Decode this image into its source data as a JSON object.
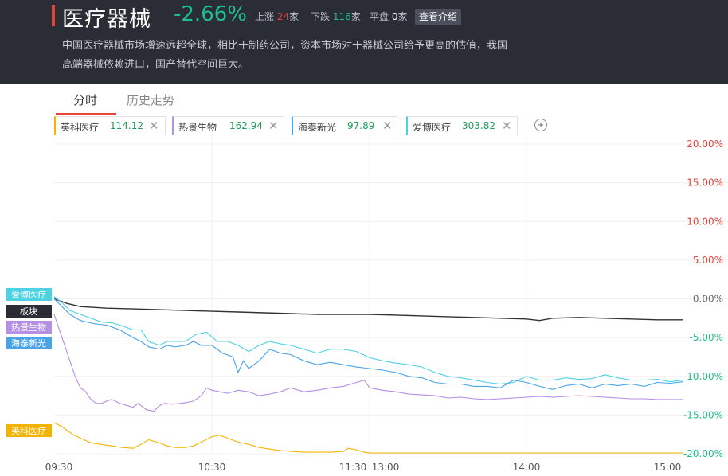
{
  "header": {
    "title": "医疗器械",
    "change": "-2.66%",
    "up_label": "上涨",
    "up_count": "24",
    "down_label": "下跌",
    "down_count": "116",
    "flat_label": "平盘",
    "flat_count": "0",
    "unit": "家",
    "intro_button": "查看介绍",
    "description_line1": "中国医疗器械市场增速远超全球，相比于制药公司，资本市场对于器械公司给予更高的估值，我国",
    "description_line2": "高端器械依赖进口，国产替代空间巨大。"
  },
  "tabs": [
    {
      "label": "分时"
    },
    {
      "label": "历史走势"
    }
  ],
  "chips": [
    {
      "name": "英科医疗",
      "value": "114.12",
      "close": "✕"
    },
    {
      "name": "热景生物",
      "value": "162.94",
      "close": "✕"
    },
    {
      "name": "海泰新光",
      "value": "97.89",
      "close": "✕"
    },
    {
      "name": "爱博医疗",
      "value": "303.82",
      "close": "✕"
    }
  ],
  "add_icon": "+",
  "colors": {
    "header_bg": "#2a2c36",
    "up": "#e8413a",
    "down": "#1dbf8a",
    "sector": "#333333",
    "yingke": "#f5b301",
    "rejing": "#b58ee6",
    "haitai": "#4aa3e6",
    "aibo": "#4fd1e4"
  },
  "chart_data": {
    "type": "line",
    "x_ticks": [
      "09:30",
      "10:30",
      "11:30",
      "13:00",
      "14:00",
      "15:00"
    ],
    "y_ticks": [
      "20.00%",
      "15.00%",
      "10.00%",
      "5.00%",
      "0.00%",
      "-5.00%",
      "-10.00%",
      "-15.00%",
      "-20.00%"
    ],
    "ylim": [
      -20,
      20
    ],
    "grid": true,
    "session_minutes": 240,
    "series": [
      {
        "name": "板块",
        "label": "板块",
        "color": "#333333",
        "points": [
          [
            0,
            0
          ],
          [
            5,
            -0.6
          ],
          [
            10,
            -1
          ],
          [
            20,
            -1.2
          ],
          [
            30,
            -1.3
          ],
          [
            40,
            -1.4
          ],
          [
            50,
            -1.5
          ],
          [
            60,
            -1.6
          ],
          [
            70,
            -1.7
          ],
          [
            80,
            -1.8
          ],
          [
            90,
            -1.9
          ],
          [
            100,
            -2
          ],
          [
            110,
            -2
          ],
          [
            120,
            -2
          ],
          [
            130,
            -2.1
          ],
          [
            140,
            -2.2
          ],
          [
            150,
            -2.3
          ],
          [
            160,
            -2.4
          ],
          [
            170,
            -2.5
          ],
          [
            180,
            -2.6
          ],
          [
            185,
            -2.8
          ],
          [
            190,
            -2.5
          ],
          [
            200,
            -2.4
          ],
          [
            210,
            -2.5
          ],
          [
            220,
            -2.6
          ],
          [
            230,
            -2.7
          ],
          [
            240,
            -2.7
          ]
        ]
      },
      {
        "name": "爱博医疗",
        "label": "爱博医疗",
        "color": "#4fd1e4",
        "points": [
          [
            0,
            0.3
          ],
          [
            3,
            -0.5
          ],
          [
            6,
            -1.5
          ],
          [
            10,
            -2
          ],
          [
            14,
            -2.5
          ],
          [
            18,
            -3
          ],
          [
            22,
            -3.1
          ],
          [
            26,
            -3.5
          ],
          [
            30,
            -4
          ],
          [
            33,
            -4
          ],
          [
            36,
            -5.5
          ],
          [
            40,
            -6
          ],
          [
            43,
            -5.5
          ],
          [
            46,
            -5.5
          ],
          [
            50,
            -5.5
          ],
          [
            54,
            -4.6
          ],
          [
            58,
            -4.3
          ],
          [
            62,
            -5.5
          ],
          [
            66,
            -5.5
          ],
          [
            70,
            -6
          ],
          [
            74,
            -6.8
          ],
          [
            78,
            -6
          ],
          [
            82,
            -5.5
          ],
          [
            86,
            -5.8
          ],
          [
            90,
            -6
          ],
          [
            95,
            -6.5
          ],
          [
            100,
            -7
          ],
          [
            105,
            -6.5
          ],
          [
            110,
            -6.5
          ],
          [
            115,
            -6.8
          ],
          [
            120,
            -7.6
          ],
          [
            125,
            -8
          ],
          [
            130,
            -8.3
          ],
          [
            135,
            -8.5
          ],
          [
            140,
            -8.8
          ],
          [
            145,
            -9.5
          ],
          [
            150,
            -10
          ],
          [
            155,
            -10.2
          ],
          [
            160,
            -10.5
          ],
          [
            165,
            -10.8
          ],
          [
            170,
            -11
          ],
          [
            175,
            -10.8
          ],
          [
            180,
            -10
          ],
          [
            185,
            -10.5
          ],
          [
            190,
            -10.5
          ],
          [
            195,
            -10.2
          ],
          [
            200,
            -10.4
          ],
          [
            205,
            -10.3
          ],
          [
            210,
            -9.8
          ],
          [
            215,
            -10.2
          ],
          [
            220,
            -10.5
          ],
          [
            225,
            -10.5
          ],
          [
            230,
            -10.4
          ],
          [
            235,
            -10.7
          ],
          [
            240,
            -10.5
          ]
        ]
      },
      {
        "name": "海泰新光",
        "label": "海泰新光",
        "color": "#4aa3e6",
        "points": [
          [
            0,
            0
          ],
          [
            3,
            -1
          ],
          [
            6,
            -2
          ],
          [
            10,
            -2.8
          ],
          [
            15,
            -3.2
          ],
          [
            20,
            -3.4
          ],
          [
            25,
            -4
          ],
          [
            30,
            -5
          ],
          [
            33,
            -5.5
          ],
          [
            36,
            -6.2
          ],
          [
            40,
            -6.5
          ],
          [
            43,
            -6
          ],
          [
            46,
            -6.2
          ],
          [
            50,
            -6
          ],
          [
            53,
            -5.5
          ],
          [
            56,
            -6
          ],
          [
            60,
            -6
          ],
          [
            64,
            -7
          ],
          [
            68,
            -7.5
          ],
          [
            70,
            -9.5
          ],
          [
            72,
            -8
          ],
          [
            74,
            -9
          ],
          [
            78,
            -8
          ],
          [
            82,
            -6.5
          ],
          [
            86,
            -7
          ],
          [
            90,
            -7.2
          ],
          [
            95,
            -8
          ],
          [
            100,
            -8.5
          ],
          [
            105,
            -8.2
          ],
          [
            110,
            -8.5
          ],
          [
            115,
            -8.8
          ],
          [
            120,
            -9
          ],
          [
            125,
            -9.2
          ],
          [
            130,
            -9.5
          ],
          [
            135,
            -10
          ],
          [
            140,
            -10.2
          ],
          [
            145,
            -10.8
          ],
          [
            150,
            -11
          ],
          [
            155,
            -11
          ],
          [
            160,
            -11.3
          ],
          [
            165,
            -11.3
          ],
          [
            170,
            -11.5
          ],
          [
            175,
            -10.5
          ],
          [
            180,
            -10.8
          ],
          [
            185,
            -11.3
          ],
          [
            190,
            -11.7
          ],
          [
            195,
            -11.2
          ],
          [
            200,
            -11
          ],
          [
            205,
            -11.5
          ],
          [
            210,
            -11
          ],
          [
            215,
            -11.2
          ],
          [
            220,
            -11
          ],
          [
            225,
            -11.3
          ],
          [
            230,
            -10.8
          ],
          [
            235,
            -10.9
          ],
          [
            240,
            -10.7
          ]
        ]
      },
      {
        "name": "热景生物",
        "label": "热景生物",
        "color": "#b58ee6",
        "points": [
          [
            0,
            -2
          ],
          [
            2,
            -4
          ],
          [
            4,
            -6
          ],
          [
            6,
            -8
          ],
          [
            8,
            -10
          ],
          [
            10,
            -11.5
          ],
          [
            12,
            -12
          ],
          [
            14,
            -13
          ],
          [
            16,
            -13.5
          ],
          [
            18,
            -13.5
          ],
          [
            20,
            -13.2
          ],
          [
            22,
            -13
          ],
          [
            25,
            -13.5
          ],
          [
            28,
            -13.8
          ],
          [
            30,
            -14
          ],
          [
            32,
            -13.5
          ],
          [
            35,
            -14.3
          ],
          [
            38,
            -14.5
          ],
          [
            40,
            -13.8
          ],
          [
            42,
            -13.5
          ],
          [
            45,
            -13.6
          ],
          [
            48,
            -13.5
          ],
          [
            50,
            -13.4
          ],
          [
            53,
            -13.2
          ],
          [
            56,
            -12.5
          ],
          [
            58,
            -11.5
          ],
          [
            60,
            -11.8
          ],
          [
            63,
            -12
          ],
          [
            66,
            -12.2
          ],
          [
            70,
            -11.8
          ],
          [
            74,
            -12
          ],
          [
            78,
            -12.5
          ],
          [
            82,
            -12.3
          ],
          [
            86,
            -12
          ],
          [
            90,
            -11.5
          ],
          [
            95,
            -12
          ],
          [
            100,
            -11.8
          ],
          [
            105,
            -11.5
          ],
          [
            110,
            -11.3
          ],
          [
            115,
            -10.8
          ],
          [
            118,
            -10.5
          ],
          [
            120,
            -11.5
          ],
          [
            125,
            -11.8
          ],
          [
            130,
            -12
          ],
          [
            135,
            -12.3
          ],
          [
            140,
            -12.4
          ],
          [
            145,
            -12.5
          ],
          [
            150,
            -12.8
          ],
          [
            155,
            -12.7
          ],
          [
            160,
            -12.9
          ],
          [
            165,
            -13
          ],
          [
            170,
            -12.9
          ],
          [
            175,
            -12.8
          ],
          [
            180,
            -12.7
          ],
          [
            185,
            -12.6
          ],
          [
            190,
            -12.7
          ],
          [
            195,
            -12.6
          ],
          [
            200,
            -12.5
          ],
          [
            205,
            -12.6
          ],
          [
            210,
            -12.7
          ],
          [
            215,
            -12.8
          ],
          [
            220,
            -12.9
          ],
          [
            225,
            -12.9
          ],
          [
            230,
            -13
          ],
          [
            235,
            -13
          ],
          [
            240,
            -13
          ]
        ]
      },
      {
        "name": "英科医疗",
        "label": "英科医疗",
        "color": "#f5b301",
        "points": [
          [
            0,
            -16
          ],
          [
            3,
            -16.5
          ],
          [
            5,
            -17
          ],
          [
            7,
            -17.5
          ],
          [
            10,
            -18
          ],
          [
            14,
            -18.6
          ],
          [
            18,
            -18.8
          ],
          [
            22,
            -19
          ],
          [
            26,
            -19.2
          ],
          [
            30,
            -19.3
          ],
          [
            33,
            -18.8
          ],
          [
            36,
            -18.2
          ],
          [
            40,
            -18.6
          ],
          [
            43,
            -19
          ],
          [
            46,
            -19.2
          ],
          [
            50,
            -19.2
          ],
          [
            53,
            -19
          ],
          [
            56,
            -18.5
          ],
          [
            60,
            -17.8
          ],
          [
            63,
            -17.6
          ],
          [
            66,
            -18
          ],
          [
            70,
            -18.5
          ],
          [
            74,
            -18.8
          ],
          [
            78,
            -19.2
          ],
          [
            82,
            -19.4
          ],
          [
            86,
            -19.6
          ],
          [
            90,
            -19.7
          ],
          [
            95,
            -19.8
          ],
          [
            100,
            -19.8
          ],
          [
            105,
            -19.8
          ],
          [
            110,
            -19.7
          ],
          [
            112,
            -19.3
          ],
          [
            115,
            -19.5
          ],
          [
            118,
            -19.8
          ],
          [
            120,
            -19.9
          ],
          [
            130,
            -19.9
          ],
          [
            140,
            -19.9
          ],
          [
            150,
            -19.9
          ],
          [
            160,
            -19.9
          ],
          [
            170,
            -19.9
          ],
          [
            180,
            -19.9
          ],
          [
            190,
            -19.9
          ],
          [
            200,
            -19.9
          ],
          [
            210,
            -19.9
          ],
          [
            220,
            -19.9
          ],
          [
            230,
            -19.9
          ],
          [
            240,
            -19.9
          ]
        ]
      }
    ]
  }
}
